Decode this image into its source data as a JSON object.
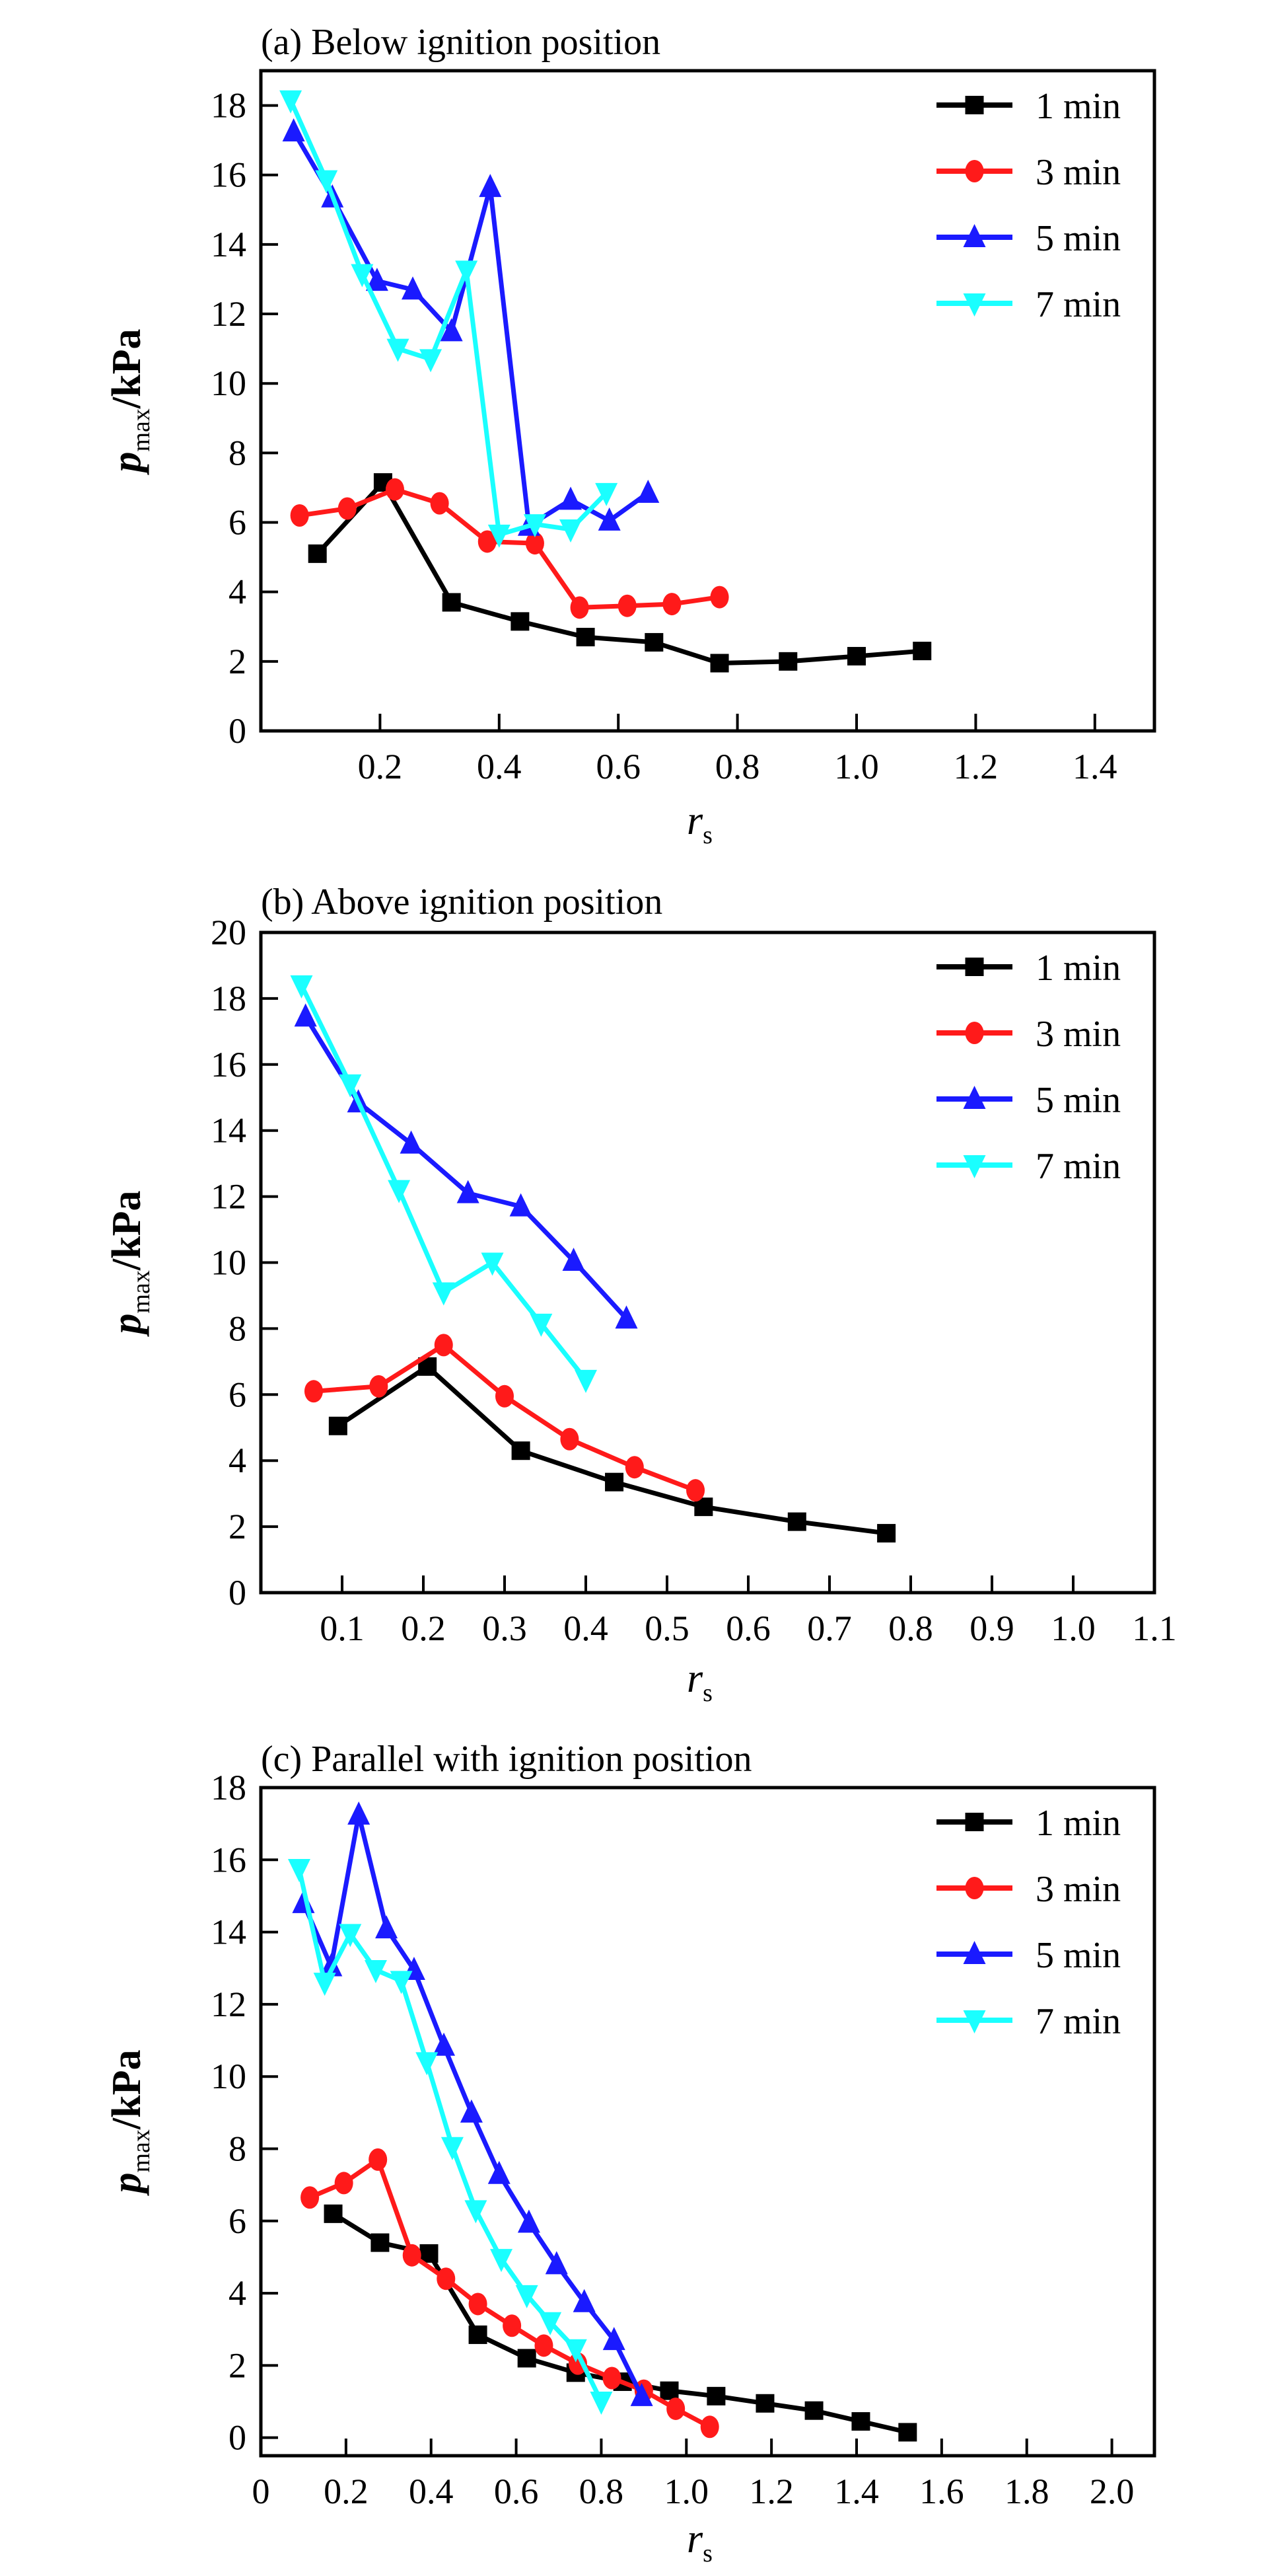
{
  "chart_data": [
    {
      "type": "line",
      "title": "(a) Below ignition position",
      "xlabel": "r_s",
      "ylabel": "p_max/kPa",
      "xlim": [
        0,
        1.5
      ],
      "ylim": [
        0,
        19
      ],
      "xticks": [
        0.2,
        0.4,
        0.6,
        0.8,
        1.0,
        1.2,
        1.4
      ],
      "xtick_labels": [
        "0.2",
        "0.4",
        "0.6",
        "0.8",
        "1.0",
        "1.2",
        "1.4"
      ],
      "yticks": [
        0,
        2,
        4,
        6,
        8,
        10,
        12,
        14,
        16,
        18
      ],
      "ytick_labels": [
        "0",
        "2",
        "4",
        "6",
        "8",
        "10",
        "12",
        "14",
        "16",
        "18"
      ],
      "grid": false,
      "legend_position": "top-right",
      "series": [
        {
          "name": "1 min",
          "color": "#000000",
          "marker": "square",
          "x": [
            0.095,
            0.205,
            0.32,
            0.435,
            0.545,
            0.66,
            0.77,
            0.885,
            1.0,
            1.11
          ],
          "y": [
            5.1,
            7.15,
            3.7,
            3.15,
            2.7,
            2.55,
            1.95,
            2.0,
            2.15,
            2.3
          ]
        },
        {
          "name": "3 min",
          "color": "#ff1a1a",
          "marker": "circle",
          "x": [
            0.065,
            0.145,
            0.225,
            0.3,
            0.38,
            0.46,
            0.535,
            0.615,
            0.69,
            0.77
          ],
          "y": [
            6.2,
            6.4,
            6.95,
            6.55,
            5.45,
            5.4,
            3.55,
            3.6,
            3.65,
            3.85
          ]
        },
        {
          "name": "5 min",
          "color": "#1a1aff",
          "marker": "triangle-up",
          "x": [
            0.055,
            0.12,
            0.195,
            0.255,
            0.32,
            0.385,
            0.45,
            0.52,
            0.585,
            0.65
          ],
          "y": [
            17.25,
            15.35,
            12.95,
            12.7,
            11.5,
            15.65,
            5.9,
            6.65,
            6.05,
            6.85
          ]
        },
        {
          "name": "7 min",
          "color": "#1affff",
          "marker": "triangle-down",
          "x": [
            0.05,
            0.11,
            0.17,
            0.23,
            0.285,
            0.345,
            0.4,
            0.46,
            0.52,
            0.58
          ],
          "y": [
            18.15,
            15.85,
            13.15,
            11.0,
            10.7,
            13.25,
            5.65,
            5.95,
            5.8,
            6.85
          ]
        }
      ]
    },
    {
      "type": "line",
      "title": "(b) Above ignition position",
      "xlabel": "r_s",
      "ylabel": "p_max/kPa",
      "xlim": [
        0,
        1.1
      ],
      "ylim": [
        0,
        20
      ],
      "xticks": [
        0.1,
        0.2,
        0.3,
        0.4,
        0.5,
        0.6,
        0.7,
        0.8,
        0.9,
        1.0,
        1.1
      ],
      "xtick_labels": [
        "0.1",
        "0.2",
        "0.3",
        "0.4",
        "0.5",
        "0.6",
        "0.7",
        "0.8",
        "0.9",
        "1.0",
        "1.1"
      ],
      "yticks": [
        0,
        2,
        4,
        6,
        8,
        10,
        12,
        14,
        16,
        18,
        20
      ],
      "ytick_labels": [
        "0",
        "2",
        "4",
        "6",
        "8",
        "10",
        "12",
        "14",
        "16",
        "18",
        "20"
      ],
      "grid": false,
      "legend_position": "top-right",
      "series": [
        {
          "name": "1 min",
          "color": "#000000",
          "marker": "square",
          "x": [
            0.095,
            0.205,
            0.32,
            0.435,
            0.545,
            0.66,
            0.77
          ],
          "y": [
            5.05,
            6.85,
            4.3,
            3.35,
            2.6,
            2.15,
            1.8
          ]
        },
        {
          "name": "3 min",
          "color": "#ff1a1a",
          "marker": "circle",
          "x": [
            0.065,
            0.145,
            0.225,
            0.3,
            0.38,
            0.46,
            0.535
          ],
          "y": [
            6.1,
            6.25,
            7.5,
            5.95,
            4.65,
            3.8,
            3.1
          ]
        },
        {
          "name": "5 min",
          "color": "#1a1aff",
          "marker": "triangle-up",
          "x": [
            0.055,
            0.12,
            0.185,
            0.255,
            0.32,
            0.385,
            0.45
          ],
          "y": [
            17.45,
            14.85,
            13.6,
            12.1,
            11.7,
            10.05,
            8.3
          ]
        },
        {
          "name": "7 min",
          "color": "#1affff",
          "marker": "triangle-down",
          "x": [
            0.05,
            0.11,
            0.17,
            0.225,
            0.285,
            0.345,
            0.4
          ],
          "y": [
            18.4,
            15.4,
            12.2,
            9.1,
            10.0,
            8.15,
            6.45
          ]
        }
      ]
    },
    {
      "type": "line",
      "title": "(c) Parallel with ignition position",
      "xlabel": "r_s",
      "ylabel": "p_max/kPa",
      "xlim": [
        0,
        2.1
      ],
      "ylim": [
        -0.5,
        18
      ],
      "xticks": [
        0,
        0.2,
        0.4,
        0.6,
        0.8,
        1.0,
        1.2,
        1.4,
        1.6,
        1.8,
        2.0
      ],
      "xtick_labels": [
        "0",
        "0.2",
        "0.4",
        "0.6",
        "0.8",
        "1.0",
        "1.2",
        "1.4",
        "1.6",
        "1.8",
        "2.0"
      ],
      "yticks": [
        0,
        2,
        4,
        6,
        8,
        10,
        12,
        14,
        16,
        18
      ],
      "ytick_labels": [
        "0",
        "2",
        "4",
        "6",
        "8",
        "10",
        "12",
        "14",
        "16",
        "18"
      ],
      "grid": false,
      "legend_position": "top-right",
      "series": [
        {
          "name": "1 min",
          "color": "#000000",
          "marker": "square",
          "x": [
            0.17,
            0.28,
            0.395,
            0.51,
            0.625,
            0.74,
            0.85,
            0.96,
            1.07,
            1.185,
            1.3,
            1.41,
            1.52
          ],
          "y": [
            6.2,
            5.4,
            5.1,
            2.85,
            2.2,
            1.8,
            1.55,
            1.3,
            1.15,
            0.95,
            0.75,
            0.45,
            0.15
          ]
        },
        {
          "name": "3 min",
          "color": "#ff1a1a",
          "marker": "circle",
          "x": [
            0.115,
            0.195,
            0.275,
            0.355,
            0.435,
            0.51,
            0.59,
            0.665,
            0.745,
            0.825,
            0.9,
            0.975,
            1.055
          ],
          "y": [
            6.65,
            7.05,
            7.7,
            5.05,
            4.4,
            3.7,
            3.1,
            2.55,
            2.05,
            1.65,
            1.3,
            0.8,
            0.3
          ]
        },
        {
          "name": "5 min",
          "color": "#1a1aff",
          "marker": "triangle-up",
          "x": [
            0.1,
            0.165,
            0.23,
            0.295,
            0.36,
            0.43,
            0.495,
            0.56,
            0.63,
            0.695,
            0.76,
            0.83,
            0.895
          ],
          "y": [
            14.8,
            13.05,
            17.25,
            14.1,
            12.95,
            10.85,
            9.0,
            7.3,
            5.95,
            4.8,
            3.75,
            2.7,
            1.15
          ]
        },
        {
          "name": "7 min",
          "color": "#1affff",
          "marker": "triangle-down",
          "x": [
            0.09,
            0.15,
            0.21,
            0.27,
            0.33,
            0.39,
            0.45,
            0.505,
            0.565,
            0.625,
            0.68,
            0.74,
            0.8
          ],
          "y": [
            15.75,
            12.6,
            13.95,
            12.95,
            12.65,
            10.4,
            8.05,
            6.3,
            4.95,
            3.95,
            3.2,
            2.45,
            1.0
          ]
        }
      ]
    }
  ]
}
